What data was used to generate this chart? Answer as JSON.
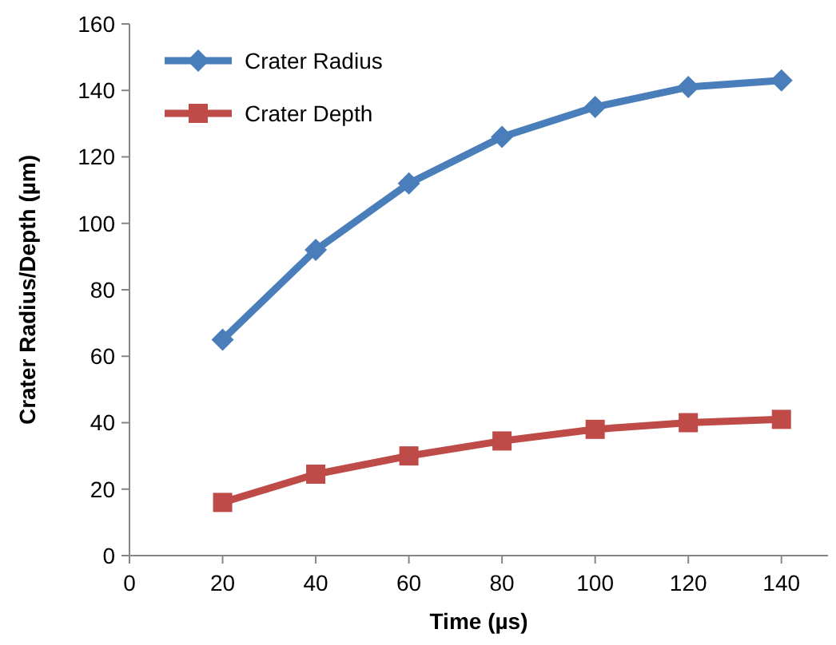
{
  "chart_data": {
    "type": "line",
    "xlabel": "Time (µs)",
    "ylabel": "Crater Radius/Depth (µm)",
    "x": [
      20,
      40,
      60,
      80,
      100,
      120,
      140
    ],
    "series": [
      {
        "name": "Crater Radius",
        "color": "#4a7ebb",
        "marker": "diamond",
        "values": [
          65,
          92,
          112,
          126,
          135,
          141,
          143
        ]
      },
      {
        "name": "Crater Depth",
        "color": "#be4b48",
        "marker": "square",
        "values": [
          16,
          24.5,
          30,
          34.5,
          38,
          40,
          41
        ]
      }
    ],
    "xlim": [
      0,
      150
    ],
    "xticks": [
      0,
      20,
      40,
      60,
      80,
      100,
      120,
      140
    ],
    "ylim": [
      0,
      160
    ],
    "yticks": [
      0,
      20,
      40,
      60,
      80,
      100,
      120,
      140,
      160
    ],
    "grid": false,
    "legend": "top left",
    "line_style": "solid"
  }
}
